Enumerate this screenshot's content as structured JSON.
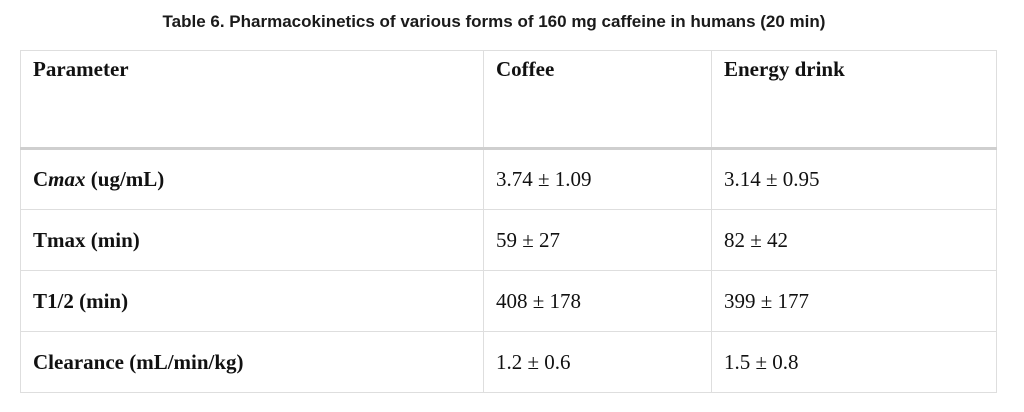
{
  "caption": "Table 6. Pharmacokinetics of various forms of 160 mg caffeine in humans (20 min)",
  "headers": [
    "Parameter",
    "Coffee",
    "Energy drink"
  ],
  "rows": [
    {
      "param_prefix": "C",
      "param_italic": "max",
      "param_suffix": " (ug/mL)",
      "coffee": "3.74 ± 1.09",
      "energy": "3.14 ± 0.95"
    },
    {
      "param": "Tmax (min)",
      "coffee": "59 ± 27",
      "energy": "82 ± 42"
    },
    {
      "param": "T1/2 (min)",
      "coffee": "408 ± 178",
      "energy": "399 ± 177"
    },
    {
      "param": "Clearance (mL/min/kg)",
      "coffee": "1.2 ± 0.6",
      "energy": "1.5 ± 0.8"
    }
  ]
}
